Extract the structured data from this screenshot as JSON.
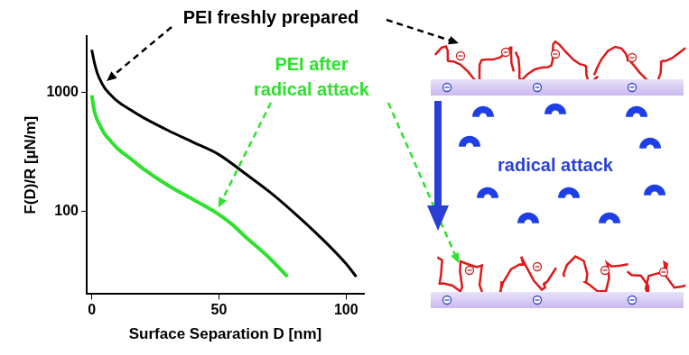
{
  "chart_data": {
    "type": "line",
    "x_label": "Surface Separation D [nm]",
    "y_label": "F(D)/R [µN/m]",
    "log": "y",
    "grid": false,
    "xlim": [
      -2,
      107
    ],
    "xticks": [
      0,
      50,
      100
    ],
    "ylim": [
      20,
      3000
    ],
    "yticks": [
      100,
      1000
    ],
    "series": [
      {
        "name": "PEI freshly prepared",
        "color": "#000000",
        "x": [
          0,
          1,
          2,
          3,
          5,
          7,
          10,
          15,
          20,
          30,
          40,
          50,
          60,
          70,
          80,
          90,
          100,
          104
        ],
        "values": [
          2300,
          1800,
          1500,
          1320,
          1100,
          980,
          850,
          720,
          620,
          480,
          380,
          300,
          210,
          145,
          95,
          60,
          36,
          28
        ]
      },
      {
        "name": "PEI after radical attack",
        "color": "#2fe02f",
        "x": [
          0,
          1,
          2,
          3,
          5,
          7,
          10,
          15,
          20,
          30,
          40,
          48,
          55,
          60,
          70,
          77
        ],
        "values": [
          950,
          700,
          600,
          540,
          450,
          400,
          340,
          280,
          230,
          165,
          125,
          100,
          78,
          62,
          40,
          28
        ]
      }
    ]
  },
  "diagram": {
    "arrow_label": "radical attack"
  }
}
